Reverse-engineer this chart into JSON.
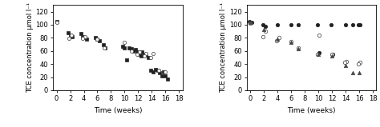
{
  "left": {
    "series1": {
      "0": [
        105
      ],
      "2": [
        88,
        84,
        82
      ],
      "4": [
        86,
        82,
        80,
        78
      ],
      "6": [
        80,
        78,
        76
      ],
      "7": [
        70,
        65
      ],
      "10": [
        67,
        65,
        46
      ],
      "11": [
        65,
        63,
        60
      ],
      "12": [
        62,
        58,
        55,
        52
      ],
      "13": [
        58,
        55,
        53,
        50
      ],
      "14": [
        30,
        28
      ],
      "15": [
        32,
        30,
        27,
        22
      ],
      "16": [
        28,
        22,
        17
      ]
    },
    "series2": {
      "0": [
        104
      ],
      "2": [
        84,
        79
      ],
      "4": [
        82,
        79
      ],
      "6": [
        78
      ],
      "7": [
        65
      ],
      "10": [
        73
      ],
      "11": [
        60
      ],
      "12": [
        58,
        55
      ],
      "13": [
        56,
        52
      ],
      "14": [
        56,
        50
      ],
      "15": [
        30
      ],
      "16": [
        28
      ]
    },
    "xlabel": "Time (weeks)",
    "ylabel": "TCE concentration μmol l⁻¹",
    "xlim": [
      -0.5,
      18.5
    ],
    "ylim": [
      0,
      130
    ],
    "yticks": [
      0,
      20,
      40,
      60,
      80,
      100,
      120
    ],
    "xticks": [
      0,
      2,
      4,
      6,
      8,
      10,
      12,
      14,
      16,
      18
    ]
  },
  "right": {
    "series1": {
      "0": [
        105,
        103
      ],
      "2": [
        100,
        98
      ],
      "4": [
        100
      ],
      "6": [
        100
      ],
      "7": [
        100
      ],
      "10": [
        100,
        57
      ],
      "12": [
        100,
        55
      ],
      "14": [
        100
      ],
      "15": [
        100
      ],
      "16": [
        100,
        100
      ]
    },
    "series2": {
      "0": [
        102
      ],
      "2": [
        90,
        82
      ],
      "4": [
        80,
        76
      ],
      "6": [
        74
      ],
      "7": [
        65
      ],
      "10": [
        84,
        55
      ],
      "12": [
        55
      ],
      "14": [
        44,
        42
      ],
      "16": [
        42,
        40
      ]
    },
    "series3": {
      "0": [
        103
      ],
      "2": [
        93
      ],
      "4": [
        78
      ],
      "6": [
        73
      ],
      "7": [
        63
      ],
      "10": [
        55
      ],
      "12": [
        52
      ],
      "14": [
        38
      ],
      "15": [
        27
      ],
      "16": [
        27
      ]
    },
    "xlabel": "Time (weeks)",
    "ylabel": "TCE concentration μmol l⁻¹",
    "xlim": [
      -0.5,
      18.5
    ],
    "ylim": [
      0,
      130
    ],
    "yticks": [
      0,
      20,
      40,
      60,
      80,
      100,
      120
    ],
    "xticks": [
      0,
      2,
      4,
      6,
      8,
      10,
      12,
      14,
      16,
      18
    ]
  }
}
